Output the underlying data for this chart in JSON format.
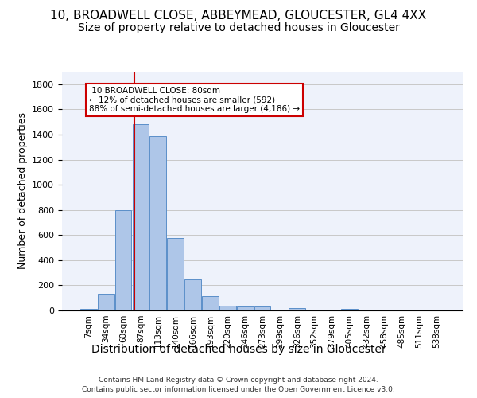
{
  "title": "10, BROADWELL CLOSE, ABBEYMEAD, GLOUCESTER, GL4 4XX",
  "subtitle": "Size of property relative to detached houses in Gloucester",
  "xlabel": "Distribution of detached houses by size in Gloucester",
  "ylabel": "Number of detached properties",
  "footer_line1": "Contains HM Land Registry data © Crown copyright and database right 2024.",
  "footer_line2": "Contains public sector information licensed under the Open Government Licence v3.0.",
  "categories": [
    "7sqm",
    "34sqm",
    "60sqm",
    "87sqm",
    "113sqm",
    "140sqm",
    "166sqm",
    "193sqm",
    "220sqm",
    "246sqm",
    "273sqm",
    "299sqm",
    "326sqm",
    "352sqm",
    "379sqm",
    "405sqm",
    "432sqm",
    "458sqm",
    "485sqm",
    "511sqm",
    "538sqm"
  ],
  "values": [
    10,
    130,
    795,
    1480,
    1390,
    575,
    250,
    115,
    35,
    30,
    30,
    0,
    20,
    0,
    0,
    15,
    0,
    0,
    0,
    0,
    0
  ],
  "bar_color": "#aec6e8",
  "bar_edge_color": "#5b8fc9",
  "property_size_label": "10 BROADWELL CLOSE: 80sqm",
  "pct_smaller": 12,
  "n_smaller": 592,
  "pct_larger_semi": 88,
  "n_larger_semi": 4186,
  "vline_x": 2.65,
  "ylim": [
    0,
    1900
  ],
  "yticks": [
    0,
    200,
    400,
    600,
    800,
    1000,
    1200,
    1400,
    1600,
    1800
  ],
  "bg_color": "#eef2fb",
  "grid_color": "#c8c8c8",
  "title_fontsize": 11,
  "subtitle_fontsize": 10,
  "ylabel_fontsize": 9,
  "xlabel_fontsize": 10,
  "vline_color": "#cc0000",
  "box_edge_color": "#cc0000",
  "tick_fontsize": 7.5,
  "footer_fontsize": 6.5
}
